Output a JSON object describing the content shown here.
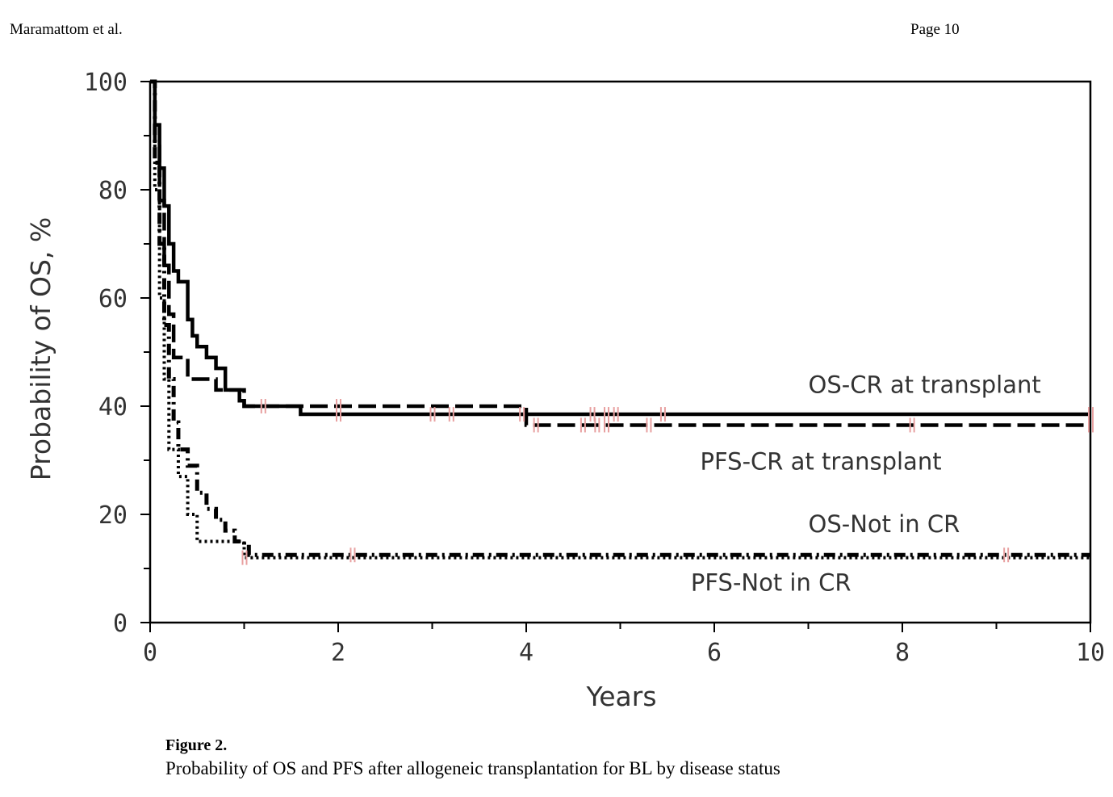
{
  "header": {
    "author": "Maramattom et al.",
    "page": "Page 10"
  },
  "caption": {
    "label": "Figure 2.",
    "text": "Probability of OS and PFS after allogeneic transplantation for BL by disease status"
  },
  "chart_data": {
    "type": "line",
    "step": true,
    "title": "",
    "xlabel": "Years",
    "ylabel": "Probability of OS, %",
    "xlim": [
      0,
      10
    ],
    "ylim": [
      0,
      100
    ],
    "xticks": [
      0,
      2,
      4,
      6,
      8,
      10
    ],
    "yticks": [
      0,
      20,
      40,
      60,
      80,
      100
    ],
    "grid": false,
    "censor_color": "#e8a0a0",
    "series": [
      {
        "name": "OS-CR at transplant",
        "style": "solid",
        "x": [
          0,
          0.05,
          0.1,
          0.15,
          0.2,
          0.25,
          0.3,
          0.4,
          0.45,
          0.5,
          0.6,
          0.7,
          0.8,
          0.95,
          1.0,
          1.6,
          10.0
        ],
        "y": [
          100,
          92,
          84,
          77,
          70,
          65,
          63,
          56,
          53,
          51,
          49,
          47,
          43,
          41,
          40,
          38.5,
          38.5
        ],
        "censored": [
          1.2,
          2.0,
          3.0,
          3.2,
          3.95,
          4.7,
          4.85,
          4.95,
          5.45,
          10.0
        ]
      },
      {
        "name": "PFS-CR at transplant",
        "style": "dashed",
        "x": [
          0,
          0.05,
          0.1,
          0.15,
          0.2,
          0.25,
          0.4,
          0.7,
          1.0,
          4.0,
          10.0
        ],
        "y": [
          100,
          88,
          78,
          66,
          57,
          49,
          45,
          43,
          40,
          36.5,
          36.5
        ],
        "censored": [
          2.0,
          4.1,
          4.6,
          4.75,
          4.85,
          5.3,
          8.1,
          10.0
        ]
      },
      {
        "name": "OS-Not in CR",
        "style": "dashdot",
        "x": [
          0,
          0.05,
          0.1,
          0.15,
          0.2,
          0.25,
          0.3,
          0.4,
          0.5,
          0.6,
          0.7,
          0.8,
          0.9,
          1.0,
          1.05,
          10.0
        ],
        "y": [
          100,
          85,
          70,
          55,
          45,
          37,
          32,
          29,
          24,
          21,
          19,
          17,
          15,
          14,
          12.5,
          12.5
        ],
        "censored": [
          2.15,
          9.1
        ]
      },
      {
        "name": "PFS-Not in CR",
        "style": "dotted",
        "x": [
          0,
          0.05,
          0.1,
          0.15,
          0.2,
          0.3,
          0.4,
          0.5,
          0.8,
          1.0,
          10.0
        ],
        "y": [
          100,
          80,
          60,
          45,
          32,
          27,
          20,
          15,
          15,
          12,
          12
        ],
        "censored": [
          1.0
        ]
      }
    ],
    "annotations": [
      {
        "text": "OS-CR at transplant",
        "x": 7.0,
        "y": 42.5
      },
      {
        "text": "PFS-CR at transplant",
        "x": 5.85,
        "y": 28.3
      },
      {
        "text": "OS-Not in CR",
        "x": 7.0,
        "y": 16.7
      },
      {
        "text": "PFS-Not in CR",
        "x": 5.75,
        "y": 5.9
      }
    ]
  }
}
